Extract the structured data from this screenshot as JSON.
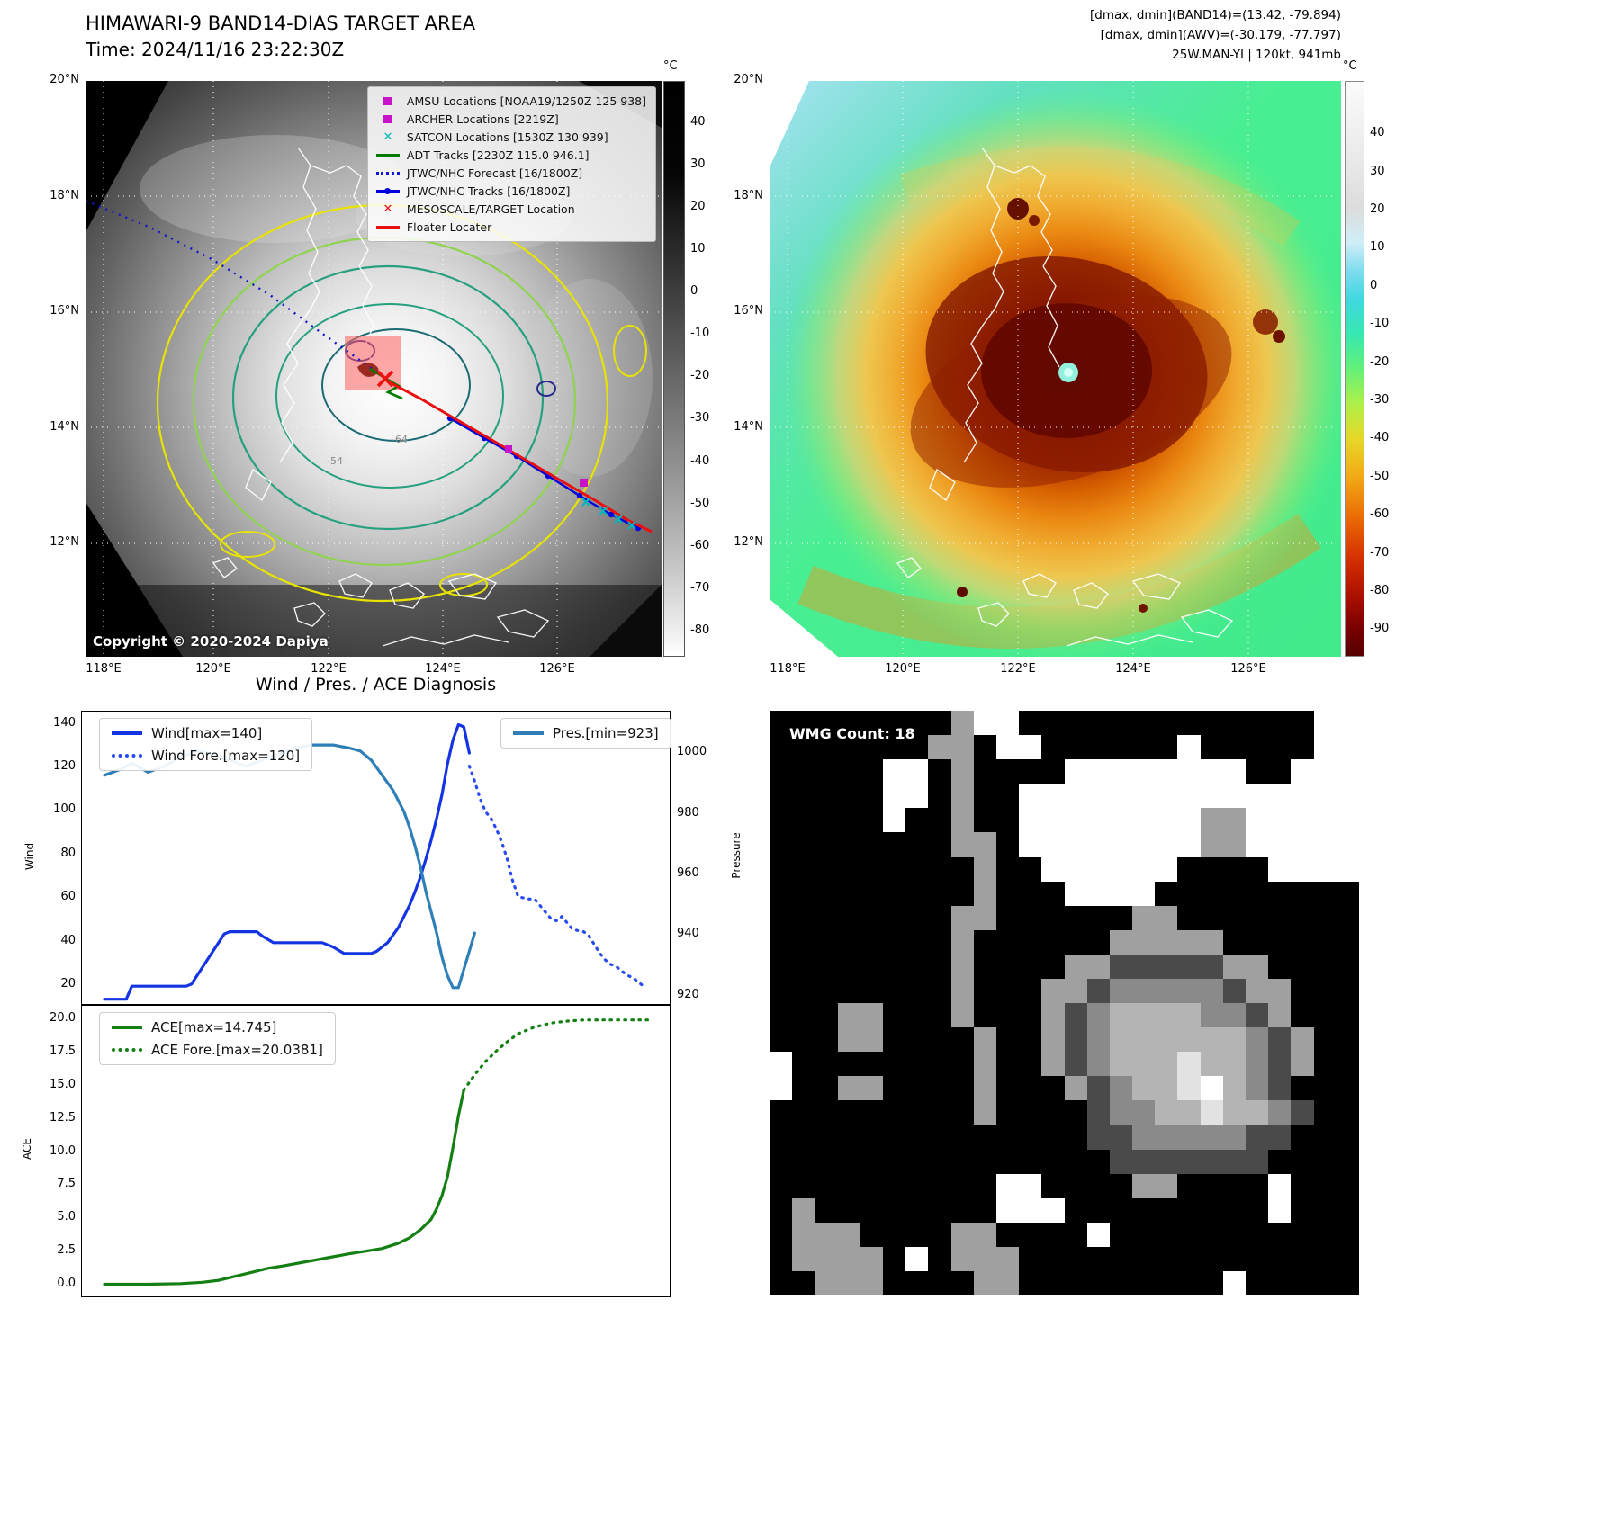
{
  "header": {
    "band14_title": "HIMAWARI-9 BAND14-DIAS TARGET AREA",
    "band14_time": "Time: 2024/11/16 23:22:30Z",
    "dmax_band14": "[dmax, dmin](BAND14)=(13.42, -79.894)",
    "dmax_awv": "[dmax, dmin](AWV)=(-30.179, -77.797)",
    "storm_info": "25W.MAN-YI | 120kt, 941mb"
  },
  "band14_map": {
    "copyright": "Copyright © 2020-2024 Dapiya",
    "x_ticks": [
      "118°E",
      "120°E",
      "122°E",
      "124°E",
      "126°E"
    ],
    "y_ticks": [
      "20°N",
      "18°N",
      "16°N",
      "14°N",
      "12°N"
    ],
    "colorbar": {
      "unit": "°C",
      "ticks": [
        40,
        30,
        20,
        10,
        0,
        -10,
        -20,
        -30,
        -40,
        -50,
        -60,
        -70,
        -80
      ]
    },
    "contour_labels": [
      "-64",
      "-54"
    ],
    "legend": [
      {
        "label": "AMSU Locations [NOAA19/1250Z 125 938]",
        "marker": "square",
        "color": "#c813c8"
      },
      {
        "label": "ARCHER Locations [2219Z]",
        "marker": "square",
        "color": "#c813c8"
      },
      {
        "label": "SATCON Locations [1530Z 130 939]",
        "marker": "x",
        "color": "#00b8b8"
      },
      {
        "label": "ADT Tracks [2230Z 115.0 946.1]",
        "marker": "line",
        "color": "#007d00"
      },
      {
        "label": "JTWC/NHC Forecast [16/1800Z]",
        "marker": "dotted",
        "color": "#1414cc"
      },
      {
        "label": "JTWC/NHC Tracks [16/1800Z]",
        "marker": "line-dot",
        "color": "#0000dd"
      },
      {
        "label": "MESOSCALE/TARGET Location",
        "marker": "x",
        "color": "#ee1111"
      },
      {
        "label": "Floater Locater",
        "marker": "line",
        "color": "#e81010"
      }
    ]
  },
  "awv_map": {
    "x_ticks": [
      "118°E",
      "120°E",
      "122°E",
      "124°E",
      "126°E"
    ],
    "y_ticks": [
      "20°N",
      "18°N",
      "16°N",
      "14°N",
      "12°N"
    ],
    "colorbar": {
      "unit": "°C",
      "ticks": [
        40,
        30,
        20,
        10,
        0,
        -10,
        -20,
        -30,
        -40,
        -50,
        -60,
        -70,
        -80,
        -90
      ]
    }
  },
  "chart_data": [
    {
      "type": "line",
      "title": "Wind / Pres. / ACE Diagnosis",
      "ylabel": "Wind",
      "y2label": "Pressure",
      "xlim": [
        0,
        100
      ],
      "ylim": [
        11,
        146
      ],
      "y2lim": [
        917,
        1014
      ],
      "yticks": [
        140,
        120,
        100,
        80,
        60,
        40,
        20
      ],
      "y2ticks": [
        1000,
        980,
        960,
        940,
        920
      ],
      "legend_groups": [
        [
          {
            "label": "Wind[max=140]",
            "style": "solid",
            "color": "#1434e4"
          },
          {
            "label": "Wind Fore.[max=120]",
            "style": "dotted",
            "color": "#2a4bee"
          }
        ],
        [
          {
            "label": "Pres.[min=923]",
            "style": "solid",
            "color": "#2e7eb8"
          }
        ]
      ],
      "series": [
        {
          "name": "Wind",
          "axis": "y",
          "style": "solid",
          "color": "#1434e4",
          "points": [
            [
              0,
              14
            ],
            [
              4,
              14
            ],
            [
              5,
              20
            ],
            [
              15,
              20
            ],
            [
              16,
              21
            ],
            [
              22,
              44
            ],
            [
              23,
              45
            ],
            [
              28,
              45
            ],
            [
              29,
              43
            ],
            [
              31,
              40
            ],
            [
              40,
              40
            ],
            [
              42,
              38
            ],
            [
              44,
              35
            ],
            [
              49,
              35
            ],
            [
              50,
              36
            ],
            [
              52,
              40
            ],
            [
              54,
              47
            ],
            [
              56,
              57
            ],
            [
              57,
              63
            ],
            [
              58,
              70
            ],
            [
              59,
              78
            ],
            [
              60,
              87
            ],
            [
              61,
              97
            ],
            [
              62,
              108
            ],
            [
              63,
              122
            ],
            [
              64,
              133
            ],
            [
              65,
              140
            ],
            [
              66,
              139
            ],
            [
              67,
              127
            ]
          ]
        },
        {
          "name": "Wind Fore.",
          "axis": "y",
          "style": "dotted",
          "color": "#2a4bee",
          "points": [
            [
              67,
              121
            ],
            [
              68,
              114
            ],
            [
              69,
              106
            ],
            [
              70,
              100
            ],
            [
              71,
              97
            ],
            [
              72,
              92
            ],
            [
              73,
              86
            ],
            [
              74,
              78
            ],
            [
              75,
              68
            ],
            [
              76,
              61
            ],
            [
              78,
              60
            ],
            [
              79,
              60
            ],
            [
              80,
              57
            ],
            [
              81,
              54
            ],
            [
              82,
              51
            ],
            [
              83,
              50
            ],
            [
              84,
              52
            ],
            [
              85,
              49
            ],
            [
              86,
              46
            ],
            [
              88,
              45
            ],
            [
              89,
              43
            ],
            [
              90,
              39
            ],
            [
              91,
              35
            ],
            [
              92,
              32
            ],
            [
              93,
              30
            ],
            [
              94,
              29
            ],
            [
              95,
              27
            ],
            [
              96,
              25
            ],
            [
              97,
              24
            ],
            [
              98,
              22
            ],
            [
              99,
              20
            ]
          ]
        },
        {
          "name": "Pres.",
          "axis": "y2",
          "style": "solid",
          "color": "#2e7eb8",
          "points": [
            [
              0,
              993
            ],
            [
              3,
              995
            ],
            [
              5,
              997
            ],
            [
              8,
              994
            ],
            [
              11,
              996
            ],
            [
              14,
              999
            ],
            [
              17,
              1001
            ],
            [
              20,
              1000
            ],
            [
              23,
              998
            ],
            [
              26,
              996
            ],
            [
              29,
              998
            ],
            [
              32,
              1000
            ],
            [
              35,
              1002
            ],
            [
              38,
              1003
            ],
            [
              42,
              1003
            ],
            [
              45,
              1002
            ],
            [
              47,
              1001
            ],
            [
              49,
              998
            ],
            [
              51,
              993
            ],
            [
              53,
              988
            ],
            [
              55,
              981
            ],
            [
              56,
              976
            ],
            [
              57,
              970
            ],
            [
              58,
              963
            ],
            [
              59,
              955
            ],
            [
              60,
              948
            ],
            [
              61,
              941
            ],
            [
              62,
              933
            ],
            [
              63,
              927
            ],
            [
              64,
              923
            ],
            [
              65,
              923
            ],
            [
              66,
              929
            ],
            [
              67,
              935
            ],
            [
              68,
              941
            ]
          ]
        }
      ]
    },
    {
      "type": "line",
      "ylabel": "ACE",
      "xlim": [
        0,
        100
      ],
      "ylim": [
        -0.95,
        21.1
      ],
      "yticks": [
        "20.0",
        "17.5",
        "15.0",
        "12.5",
        "10.0",
        "7.5",
        "5.0",
        "2.5",
        "0.0"
      ],
      "legend_groups": [
        [
          {
            "label": "ACE[max=14.745]",
            "style": "solid",
            "color": "#148014"
          },
          {
            "label": "ACE Fore.[max=20.0381]",
            "style": "dotted",
            "color": "#148014"
          }
        ]
      ],
      "series": [
        {
          "name": "ACE",
          "axis": "y",
          "style": "solid",
          "color": "#148014",
          "points": [
            [
              0,
              0.1
            ],
            [
              8,
              0.1
            ],
            [
              14,
              0.15
            ],
            [
              18,
              0.25
            ],
            [
              21,
              0.4
            ],
            [
              24,
              0.7
            ],
            [
              27,
              1.0
            ],
            [
              30,
              1.3
            ],
            [
              33,
              1.5
            ],
            [
              37,
              1.8
            ],
            [
              41,
              2.1
            ],
            [
              45,
              2.4
            ],
            [
              48,
              2.6
            ],
            [
              51,
              2.8
            ],
            [
              54,
              3.2
            ],
            [
              56,
              3.6
            ],
            [
              58,
              4.2
            ],
            [
              60,
              5.0
            ],
            [
              61,
              5.8
            ],
            [
              62,
              6.8
            ],
            [
              63,
              8.2
            ],
            [
              64,
              10.4
            ],
            [
              65,
              12.8
            ],
            [
              66,
              14.745
            ]
          ]
        },
        {
          "name": "ACE Fore.",
          "axis": "y",
          "style": "dotted",
          "color": "#148014",
          "points": [
            [
              66,
              14.745
            ],
            [
              68,
              15.9
            ],
            [
              70,
              16.9
            ],
            [
              72,
              17.7
            ],
            [
              74,
              18.4
            ],
            [
              76,
              19.0
            ],
            [
              79,
              19.5
            ],
            [
              82,
              19.8
            ],
            [
              85,
              19.95
            ],
            [
              88,
              20.03
            ],
            [
              92,
              20.0381
            ],
            [
              100,
              20.0381
            ]
          ]
        }
      ]
    }
  ],
  "wmg": {
    "label": "WMG Count: 18",
    "palette": {
      ".": "#000000",
      "g": "#a0a0a0",
      "w": "#ffffff",
      "d": "#4a4a4a",
      "m": "#8a8a8a",
      "l": "#b4b4b4",
      "t": "#e2e2e2"
    },
    "rows": [
      "........gww.............ww",
      ".......gg.ww......w.....ww",
      ".....ww.g....wwwwwwww..www",
      ".....ww.g..wwwwwwwwwwwwwww",
      ".....w..g..wwwwwwwwggwwwww",
      "........gg.wwwwwwwwggwwwww",
      ".........g..wwwwww....wwww",
      ".........g...wwww.........",
      "........gg......gg........",
      "........g......ggggg......",
      "........g....ggdddddgg....",
      "........g...ggdmmmmmdgg...",
      "...gg...g...gdmllllmmdg...",
      "...gg....g..gdmllllllmdg..",
      "w........g..gdmllltllmdg..",
      "w..gg....g...gdmlltwlmd...",
      ".........g....dmmlltllmd..",
      "..............ddmmmmmdd...",
      "...............ddddddd....",
      "..........ww....gg....w...",
      ".g........www.........w...",
      ".ggg....gg....w...........",
      ".gggg.w.ggg...............",
      "..ggg....gg.........w....."
    ]
  }
}
